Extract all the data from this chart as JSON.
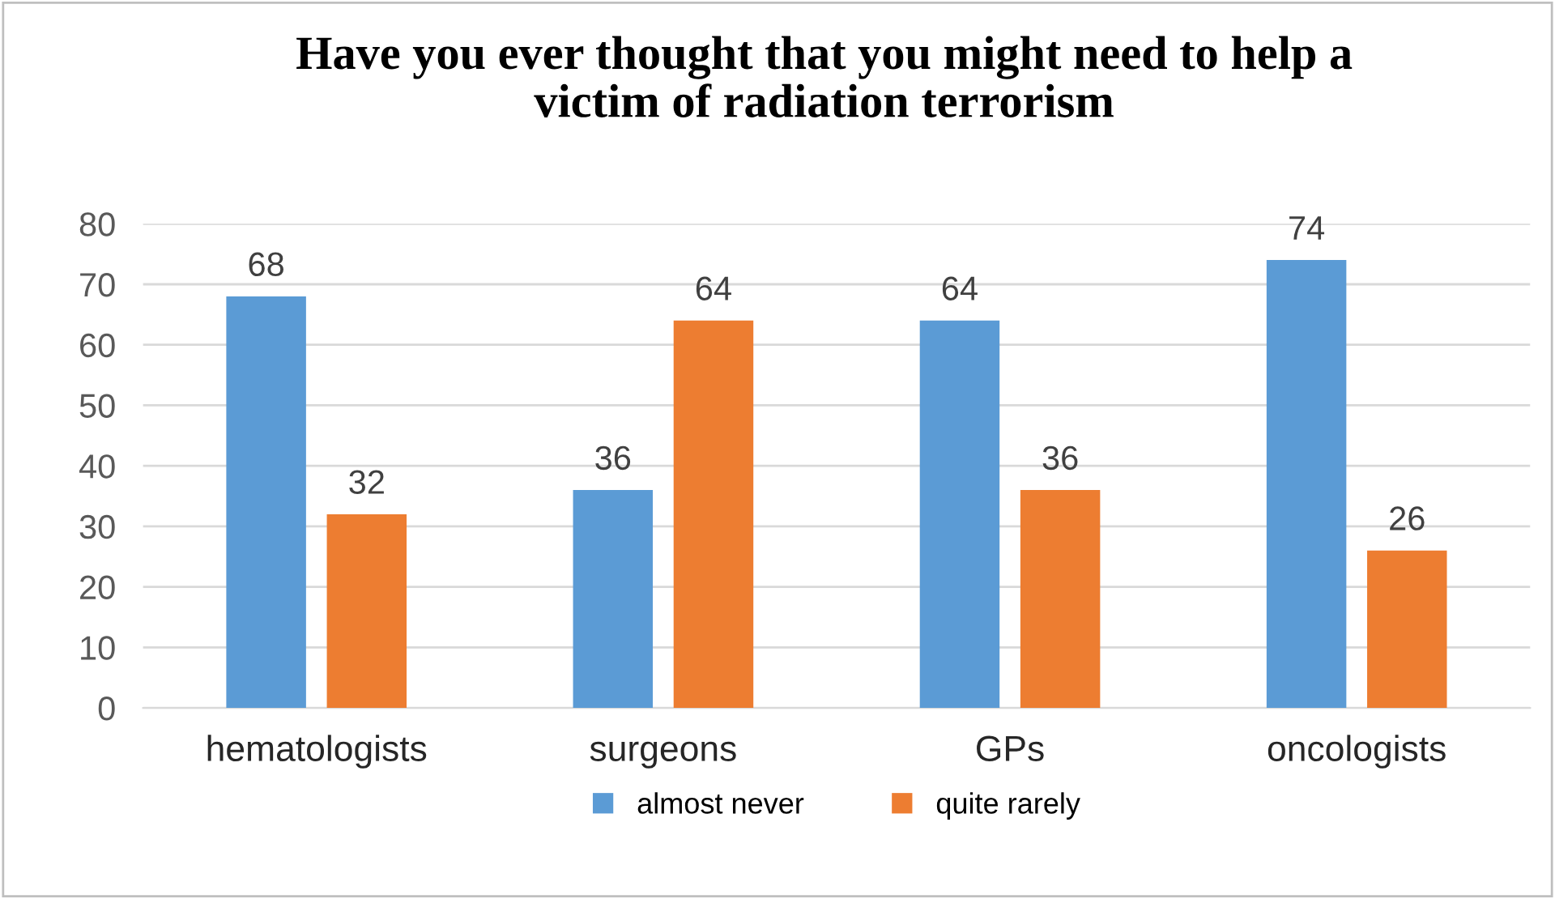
{
  "chart_data": {
    "type": "bar",
    "title": "Have you ever thought that you might need to help a\nvictim of radiation terrorism",
    "categories": [
      "hematologists",
      "surgeons",
      "GPs",
      "oncologists"
    ],
    "series": [
      {
        "name": "almost never",
        "color": "#5b9bd5",
        "values": [
          68,
          36,
          64,
          74
        ]
      },
      {
        "name": "quite rarely",
        "color": "#ed7d31",
        "values": [
          32,
          64,
          36,
          26
        ]
      }
    ],
    "ylim": [
      0,
      80
    ],
    "yticks": [
      0,
      10,
      20,
      30,
      40,
      50,
      60,
      70,
      80
    ],
    "grid": "y",
    "legend": "bottom",
    "data_labels": true
  }
}
